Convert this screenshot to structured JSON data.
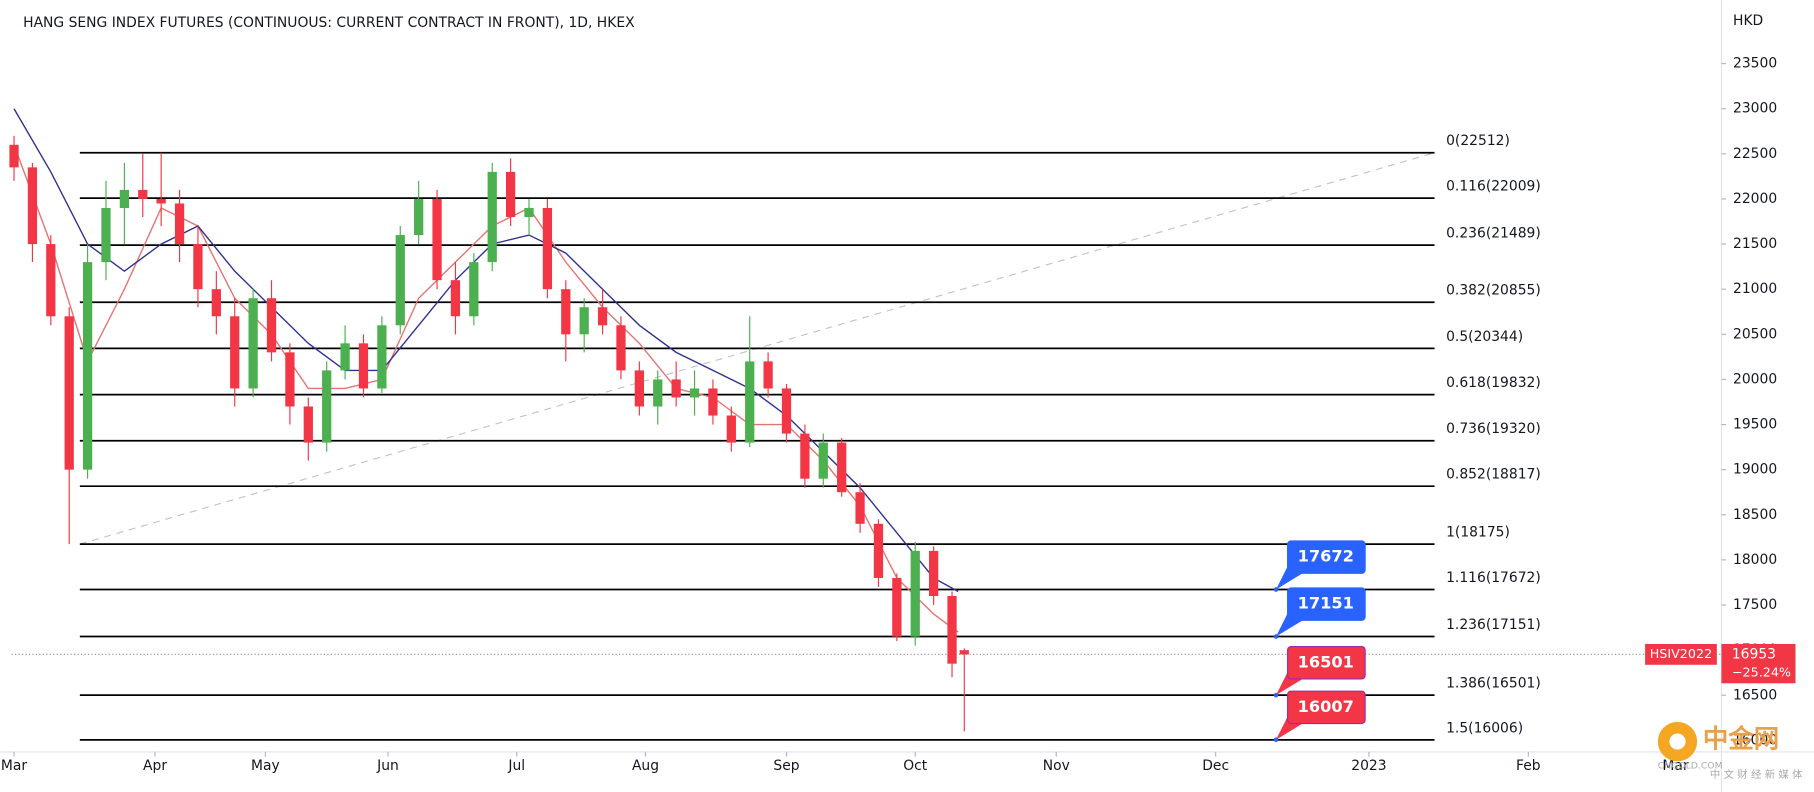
{
  "chart_data": {
    "type": "candlestick",
    "title": "HANG SENG INDEX FUTURES (CONTINUOUS: CURRENT CONTRACT IN FRONT), 1D, HKEX",
    "currency": "HKD",
    "up_color": "#4caf50",
    "down_color": "#f23645",
    "x": [
      0,
      3,
      6,
      9,
      12,
      15,
      18,
      21,
      24,
      27,
      30,
      33,
      36,
      39,
      42,
      45,
      48,
      51,
      54,
      57,
      60,
      63,
      66,
      69,
      72,
      75,
      78,
      81,
      84,
      87,
      90,
      93,
      96,
      99,
      102,
      105,
      108,
      111,
      114,
      117,
      120,
      123,
      126,
      129,
      132,
      135,
      138,
      141,
      144,
      147,
      150,
      153,
      155
    ],
    "open": [
      22600,
      22350,
      21500,
      20700,
      19000,
      21300,
      21900,
      22100,
      22000,
      21950,
      21500,
      21000,
      20700,
      19900,
      20900,
      20300,
      19700,
      19300,
      20100,
      20400,
      19900,
      20600,
      21600,
      22000,
      21100,
      20700,
      21300,
      22300,
      21800,
      21900,
      21000,
      20500,
      20800,
      20600,
      20100,
      19700,
      20000,
      19800,
      19900,
      19600,
      19300,
      20200,
      19900,
      19400,
      18900,
      19300,
      18750,
      18400,
      17800,
      17150,
      18100,
      17600,
      17000
    ],
    "high": [
      22700,
      22400,
      21600,
      20800,
      21500,
      22200,
      22400,
      22500,
      22512,
      22100,
      21700,
      21200,
      20900,
      21000,
      21100,
      20400,
      19800,
      20200,
      20600,
      20500,
      20700,
      21700,
      22200,
      22100,
      21300,
      21400,
      22400,
      22450,
      22000,
      22000,
      21100,
      20900,
      21000,
      20700,
      20200,
      20100,
      20200,
      20100,
      20000,
      19700,
      20700,
      20300,
      19950,
      19500,
      19400,
      19350,
      18850,
      18450,
      17850,
      18200,
      18150,
      17650,
      17020
    ],
    "low": [
      22200,
      21300,
      20600,
      18175,
      18900,
      21100,
      21500,
      21800,
      21700,
      21300,
      20800,
      20500,
      19700,
      19800,
      20200,
      19500,
      19100,
      19200,
      20000,
      19800,
      19850,
      20500,
      21500,
      21000,
      20500,
      20600,
      21200,
      21700,
      21600,
      20900,
      20200,
      20300,
      20500,
      20000,
      19600,
      19500,
      19700,
      19600,
      19500,
      19200,
      19250,
      19800,
      19300,
      18800,
      18800,
      18700,
      18300,
      17700,
      17100,
      17050,
      17500,
      16700,
      16100
    ],
    "close": [
      22350,
      21500,
      20700,
      19000,
      21300,
      21900,
      22100,
      22000,
      21950,
      21500,
      21000,
      20700,
      19900,
      20900,
      20300,
      19700,
      19300,
      20100,
      20400,
      19900,
      20600,
      21600,
      22000,
      21100,
      20700,
      21300,
      22300,
      21800,
      21900,
      21000,
      20500,
      20800,
      20600,
      20100,
      19700,
      20000,
      19800,
      19900,
      19600,
      19300,
      20200,
      19900,
      19400,
      18900,
      19300,
      18750,
      18400,
      17800,
      17150,
      18100,
      17600,
      16850,
      16953
    ],
    "moving_averages": [
      {
        "color": "#e57373",
        "x": [
          0,
          6,
          12,
          18,
          24,
          30,
          36,
          42,
          48,
          54,
          60,
          66,
          72,
          78,
          84,
          90,
          96,
          102,
          108,
          114,
          120,
          126,
          132,
          138,
          144,
          150,
          154
        ],
        "values": [
          22600,
          21500,
          20200,
          21000,
          21900,
          21700,
          20900,
          20500,
          19900,
          19900,
          20000,
          20900,
          21300,
          21700,
          21900,
          21300,
          20800,
          20400,
          19900,
          19800,
          19500,
          19500,
          19100,
          18600,
          17800,
          17400,
          17200
        ]
      },
      {
        "color": "#2e3192",
        "x": [
          0,
          6,
          12,
          18,
          24,
          30,
          36,
          42,
          48,
          54,
          60,
          66,
          72,
          78,
          84,
          90,
          96,
          102,
          108,
          114,
          120,
          126,
          132,
          138,
          144,
          150,
          154
        ],
        "values": [
          23000,
          22300,
          21500,
          21200,
          21500,
          21700,
          21200,
          20800,
          20400,
          20100,
          20100,
          20600,
          21100,
          21500,
          21600,
          21400,
          21000,
          20600,
          20300,
          20100,
          19900,
          19600,
          19200,
          18800,
          18300,
          17800,
          17650
        ]
      }
    ],
    "xlim": [
      -0.4,
      278.5
    ],
    "xticks": [
      {
        "value": 0,
        "label": "Mar"
      },
      {
        "value": 23,
        "label": "Apr"
      },
      {
        "value": 41,
        "label": "May"
      },
      {
        "value": 61,
        "label": "Jun"
      },
      {
        "value": 82,
        "label": "Jul"
      },
      {
        "value": 103,
        "label": "Aug"
      },
      {
        "value": 126,
        "label": "Sep"
      },
      {
        "value": 147,
        "label": "Oct"
      },
      {
        "value": 170,
        "label": "Nov"
      },
      {
        "value": 196,
        "label": "Dec"
      },
      {
        "value": 221,
        "label": "2023"
      },
      {
        "value": 247,
        "label": "Feb"
      },
      {
        "value": 271,
        "label": "Mar"
      }
    ],
    "ylim": [
      15974,
      24205
    ],
    "yticks": [
      16000,
      16500,
      17000,
      17500,
      18000,
      18500,
      19000,
      19500,
      20000,
      20500,
      21000,
      21500,
      22000,
      22500,
      23000,
      23500
    ],
    "grid": false,
    "fib_levels": [
      {
        "label": "0(22512)",
        "value": 22512
      },
      {
        "label": "0.116(22009)",
        "value": 22009
      },
      {
        "label": "0.236(21489)",
        "value": 21489
      },
      {
        "label": "0.382(20855)",
        "value": 20855
      },
      {
        "label": "0.5(20344)",
        "value": 20344
      },
      {
        "label": "0.618(19832)",
        "value": 19832
      },
      {
        "label": "0.736(19320)",
        "value": 19320
      },
      {
        "label": "0.852(18817)",
        "value": 18817
      },
      {
        "label": "1(18175)",
        "value": 18175
      },
      {
        "label": "1.116(17672)",
        "value": 17672
      },
      {
        "label": "1.236(17151)",
        "value": 17151
      },
      {
        "label": "1.386(16501)",
        "value": 16501
      },
      {
        "label": "1.5(16006)",
        "value": 16006
      }
    ],
    "callouts": [
      {
        "value": 17672,
        "color": "#2962ff"
      },
      {
        "value": 17151,
        "color": "#2962ff"
      },
      {
        "value": 16501,
        "color": "#f23645"
      },
      {
        "value": 16007,
        "color": "#f23645"
      }
    ],
    "last_price": {
      "symbol": "HSIV2022",
      "value": 16953,
      "change": "−25.24%",
      "color": "#f23645"
    }
  },
  "watermark": {
    "brand": "中金网",
    "site": "CNGOLD.COM",
    "tagline": "中 文 财 经 新 媒 体"
  }
}
